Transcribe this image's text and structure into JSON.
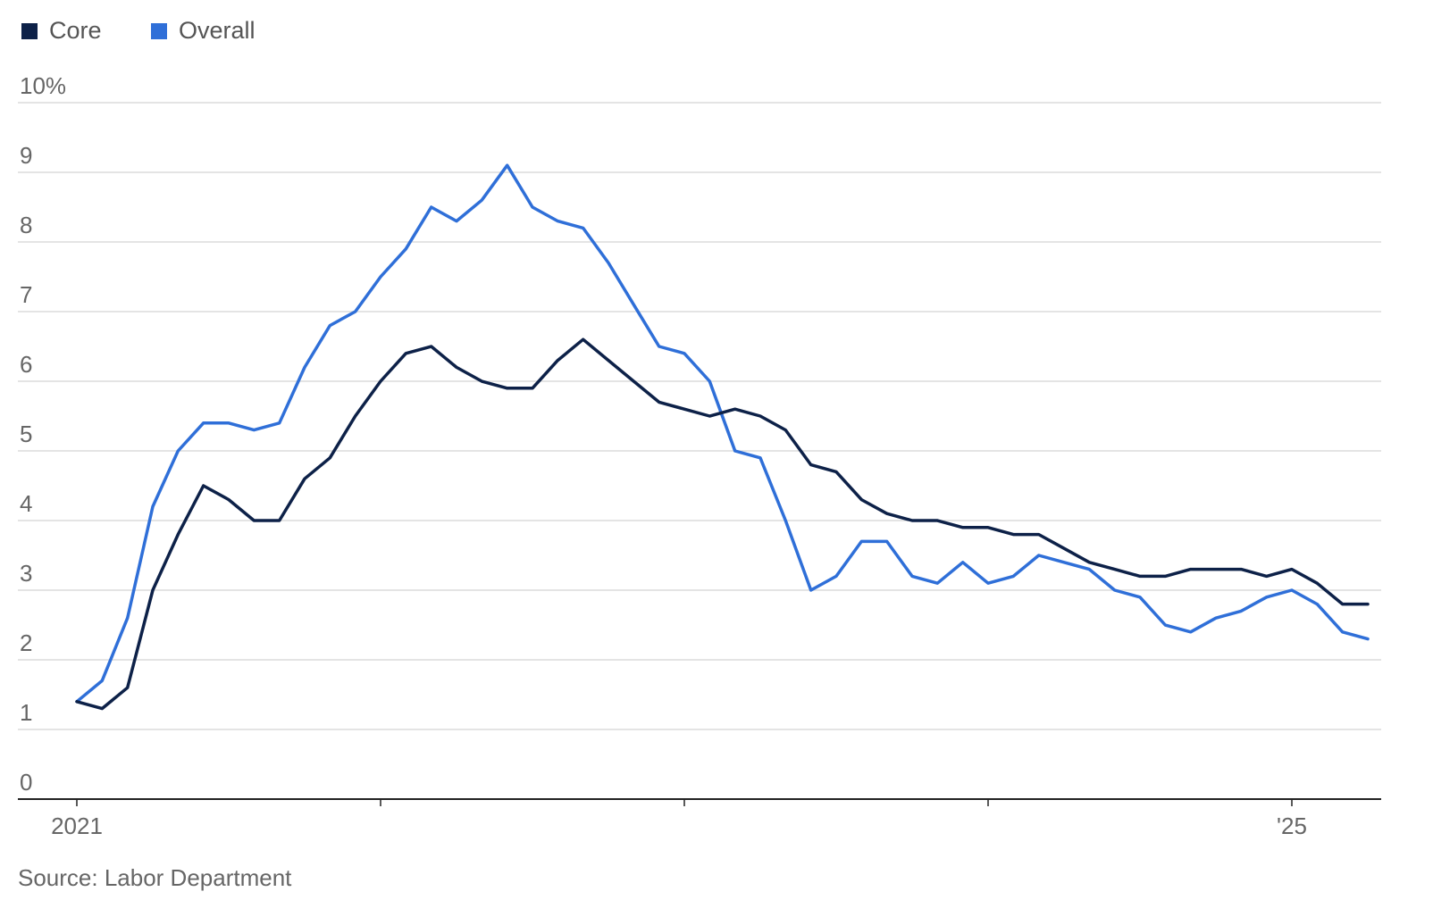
{
  "chart_data": {
    "type": "line",
    "title": "",
    "xlabel": "",
    "ylabel": "",
    "ylim": [
      0,
      10
    ],
    "y_ticks": [
      {
        "value": 0,
        "label": "0"
      },
      {
        "value": 1,
        "label": "1"
      },
      {
        "value": 2,
        "label": "2"
      },
      {
        "value": 3,
        "label": "3"
      },
      {
        "value": 4,
        "label": "4"
      },
      {
        "value": 5,
        "label": "5"
      },
      {
        "value": 6,
        "label": "6"
      },
      {
        "value": 7,
        "label": "7"
      },
      {
        "value": 8,
        "label": "8"
      },
      {
        "value": 9,
        "label": "9"
      },
      {
        "value": 10,
        "label": "10%"
      }
    ],
    "x_ticks": [
      {
        "date": "2021-01",
        "label": "2021"
      },
      {
        "date": "2022-01",
        "label": ""
      },
      {
        "date": "2023-01",
        "label": ""
      },
      {
        "date": "2024-01",
        "label": ""
      },
      {
        "date": "2025-01",
        "label": "'25"
      }
    ],
    "grid": true,
    "legend_position": "top-left",
    "x": [
      "2021-01",
      "2021-02",
      "2021-03",
      "2021-04",
      "2021-05",
      "2021-06",
      "2021-07",
      "2021-08",
      "2021-09",
      "2021-10",
      "2021-11",
      "2021-12",
      "2022-01",
      "2022-02",
      "2022-03",
      "2022-04",
      "2022-05",
      "2022-06",
      "2022-07",
      "2022-08",
      "2022-09",
      "2022-10",
      "2022-11",
      "2022-12",
      "2023-01",
      "2023-02",
      "2023-03",
      "2023-04",
      "2023-05",
      "2023-06",
      "2023-07",
      "2023-08",
      "2023-09",
      "2023-10",
      "2023-11",
      "2023-12",
      "2024-01",
      "2024-02",
      "2024-03",
      "2024-04",
      "2024-05",
      "2024-06",
      "2024-07",
      "2024-08",
      "2024-09",
      "2024-10",
      "2024-11",
      "2024-12",
      "2025-01",
      "2025-02",
      "2025-03",
      "2025-04"
    ],
    "series": [
      {
        "name": "Core",
        "color": "#0d2148",
        "values": [
          1.4,
          1.3,
          1.6,
          3.0,
          3.8,
          4.5,
          4.3,
          4.0,
          4.0,
          4.6,
          4.9,
          5.5,
          6.0,
          6.4,
          6.5,
          6.2,
          6.0,
          5.9,
          5.9,
          6.3,
          6.6,
          6.3,
          6.0,
          5.7,
          5.6,
          5.5,
          5.6,
          5.5,
          5.3,
          4.8,
          4.7,
          4.3,
          4.1,
          4.0,
          4.0,
          3.9,
          3.9,
          3.8,
          3.8,
          3.6,
          3.4,
          3.3,
          3.2,
          3.2,
          3.3,
          3.3,
          3.3,
          3.2,
          3.3,
          3.1,
          2.8,
          2.8
        ]
      },
      {
        "name": "Overall",
        "color": "#2f6fd8",
        "values": [
          1.4,
          1.7,
          2.6,
          4.2,
          5.0,
          5.4,
          5.4,
          5.3,
          5.4,
          6.2,
          6.8,
          7.0,
          7.5,
          7.9,
          8.5,
          8.3,
          8.6,
          9.1,
          8.5,
          8.3,
          8.2,
          7.7,
          7.1,
          6.5,
          6.4,
          6.0,
          5.0,
          4.9,
          4.0,
          3.0,
          3.2,
          3.7,
          3.7,
          3.2,
          3.1,
          3.4,
          3.1,
          3.2,
          3.5,
          3.4,
          3.3,
          3.0,
          2.9,
          2.5,
          2.4,
          2.6,
          2.7,
          2.9,
          3.0,
          2.8,
          2.4,
          2.3
        ]
      }
    ]
  },
  "source": "Source: Labor Department"
}
